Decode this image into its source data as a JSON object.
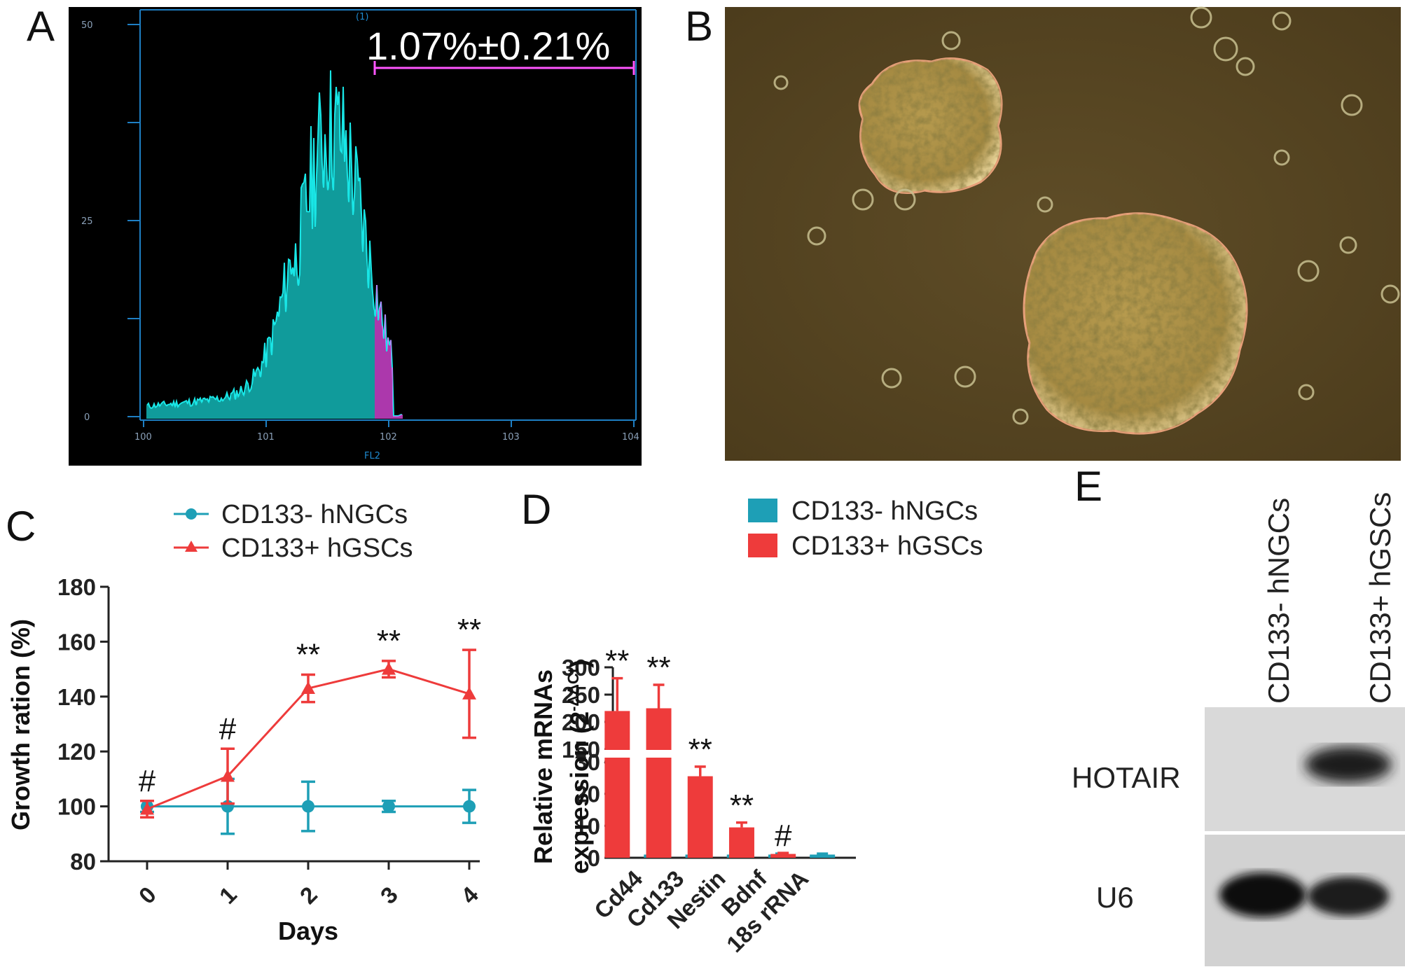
{
  "panel_labels": {
    "A": "A",
    "B": "B",
    "C": "C",
    "D": "D",
    "E": "E"
  },
  "panel_a": {
    "annotation": "1.07%±0.21%",
    "gate_marker": "(1)",
    "axis_label": "FL2",
    "y_ticks": [
      "50",
      "25",
      "0"
    ],
    "x_ticks": [
      "100",
      "101",
      "102",
      "103",
      "104"
    ],
    "colors": {
      "background": "#000000",
      "frame": "#1e7fc4",
      "histogram": "#19e6e6",
      "gated": "#ff55ff"
    }
  },
  "panel_b": {
    "icon": "micrograph-neurosphere-image"
  },
  "legend": {
    "neg": "CD133- hNGCs",
    "pos": "CD133+ hGSCs",
    "colors": {
      "neg": "#1e9fb6",
      "pos": "#ee3b3b"
    }
  },
  "chart_data": [
    {
      "type": "line",
      "panel": "C",
      "xlabel": "Days",
      "ylabel": "Growth ration (%)",
      "categories": [
        "0",
        "1",
        "2",
        "3",
        "4"
      ],
      "y_ticks": [
        "80",
        "100",
        "120",
        "140",
        "160",
        "180"
      ],
      "ylim": [
        80,
        180
      ],
      "series": [
        {
          "name": "CD133- hNGCs",
          "values": [
            100,
            100,
            100,
            100,
            100
          ],
          "errors": [
            2,
            10,
            9,
            2,
            6
          ]
        },
        {
          "name": "CD133+ hGSCs",
          "values": [
            99,
            111,
            143,
            150,
            141
          ],
          "errors": [
            3,
            10,
            5,
            3,
            16
          ]
        }
      ],
      "annotations": [
        "#",
        "#",
        "**",
        "**",
        "**"
      ],
      "legend_position": "top"
    },
    {
      "type": "bar",
      "panel": "D",
      "ylabel_line1": "Relative mRNAs",
      "ylabel_line2": "expression (2",
      "ylabel_exponent": "-ΔΔCt",
      "ylabel_close": ")",
      "categories": [
        "Cd44",
        "Cd133",
        "Nestin",
        "Bdnf",
        "18s rRNA"
      ],
      "y_ticks_lower": [
        "0",
        "10",
        "20",
        "30"
      ],
      "y_ticks_upper": [
        "150",
        "200",
        "250",
        "300"
      ],
      "axis_break": [
        30,
        150
      ],
      "series": [
        {
          "name": "CD133+ hGSCs",
          "values": [
            220,
            225,
            25.5,
            9.5,
            1.2
          ],
          "errors": [
            60,
            43,
            3,
            1.5,
            0.3
          ]
        },
        {
          "name": "CD133- hNGCs",
          "values": [
            1,
            1,
            1,
            1,
            1
          ],
          "errors": [
            0.3,
            0.3,
            0.2,
            0.3,
            0.3
          ]
        }
      ],
      "annotations": [
        "**",
        "**",
        "**",
        "**",
        "#"
      ],
      "legend_position": "top"
    }
  ],
  "panel_e": {
    "lanes": [
      "CD133- hNGCs",
      "CD133+ hGSCs"
    ],
    "rows": [
      "HOTAIR",
      "U6"
    ]
  }
}
